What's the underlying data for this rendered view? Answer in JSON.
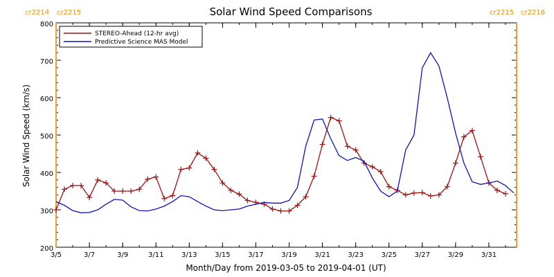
{
  "chart_data": {
    "type": "line",
    "title": "Solar Wind Speed Comparisons",
    "xlabel": "Month/Day from 2019-03-05 to 2019-04-01 (UT)",
    "ylabel": "Solar Wind Speed (km/s)",
    "ylim": [
      200,
      800
    ],
    "xlim": [
      "2019-03-05",
      "2019-04-01 16:00"
    ],
    "yticks": [
      200,
      300,
      400,
      500,
      600,
      700,
      800
    ],
    "xticks": [
      {
        "date": "2019-03-05",
        "label": "3/5"
      },
      {
        "date": "2019-03-07",
        "label": "3/7"
      },
      {
        "date": "2019-03-09",
        "label": "3/9"
      },
      {
        "date": "2019-03-11",
        "label": "3/11"
      },
      {
        "date": "2019-03-13",
        "label": "3/13"
      },
      {
        "date": "2019-03-15",
        "label": "3/15"
      },
      {
        "date": "2019-03-17",
        "label": "3/17"
      },
      {
        "date": "2019-03-19",
        "label": "3/19"
      },
      {
        "date": "2019-03-21",
        "label": "3/21"
      },
      {
        "date": "2019-03-23",
        "label": "3/23"
      },
      {
        "date": "2019-03-25",
        "label": "3/25"
      },
      {
        "date": "2019-03-27",
        "label": "3/27"
      },
      {
        "date": "2019-03-29",
        "label": "3/29"
      },
      {
        "date": "2019-03-31",
        "label": "3/31"
      }
    ],
    "legend_position": "top-left",
    "rotation_markers": [
      {
        "date": "2019-03-05",
        "label_left": "cr2214",
        "label_right": "cr2215",
        "color": "#f0a030"
      },
      {
        "date": "2019-04-01 16:00",
        "label_left": "cr2215",
        "label_right": "cr2216",
        "color": "#f0a030"
      }
    ],
    "series": [
      {
        "name": "STEREO-Ahead (12-hr avg)",
        "color": "#a01010",
        "marker": "plus",
        "points": [
          [
            "2019-03-05 00:00",
            300
          ],
          [
            "2019-03-05 12:00",
            355
          ],
          [
            "2019-03-06 00:00",
            365
          ],
          [
            "2019-03-06 12:00",
            365
          ],
          [
            "2019-03-07 00:00",
            333
          ],
          [
            "2019-03-07 12:00",
            380
          ],
          [
            "2019-03-08 00:00",
            372
          ],
          [
            "2019-03-08 12:00",
            350
          ],
          [
            "2019-03-09 00:00",
            350
          ],
          [
            "2019-03-09 12:00",
            350
          ],
          [
            "2019-03-10 00:00",
            355
          ],
          [
            "2019-03-10 12:00",
            382
          ],
          [
            "2019-03-11 00:00",
            388
          ],
          [
            "2019-03-11 12:00",
            330
          ],
          [
            "2019-03-12 00:00",
            338
          ],
          [
            "2019-03-12 12:00",
            408
          ],
          [
            "2019-03-13 00:00",
            412
          ],
          [
            "2019-03-13 12:00",
            452
          ],
          [
            "2019-03-14 00:00",
            438
          ],
          [
            "2019-03-14 12:00",
            408
          ],
          [
            "2019-03-15 00:00",
            372
          ],
          [
            "2019-03-15 12:00",
            352
          ],
          [
            "2019-03-16 00:00",
            342
          ],
          [
            "2019-03-16 12:00",
            325
          ],
          [
            "2019-03-17 00:00",
            320
          ],
          [
            "2019-03-17 12:00",
            315
          ],
          [
            "2019-03-18 00:00",
            302
          ],
          [
            "2019-03-18 12:00",
            297
          ],
          [
            "2019-03-19 00:00",
            297
          ],
          [
            "2019-03-19 12:00",
            312
          ],
          [
            "2019-03-20 00:00",
            335
          ],
          [
            "2019-03-20 12:00",
            390
          ],
          [
            "2019-03-21 00:00",
            475
          ],
          [
            "2019-03-21 12:00",
            547
          ],
          [
            "2019-03-22 00:00",
            538
          ],
          [
            "2019-03-22 12:00",
            470
          ],
          [
            "2019-03-23 00:00",
            460
          ],
          [
            "2019-03-23 12:00",
            425
          ],
          [
            "2019-03-24 00:00",
            415
          ],
          [
            "2019-03-24 12:00",
            402
          ],
          [
            "2019-03-25 00:00",
            362
          ],
          [
            "2019-03-25 12:00",
            352
          ],
          [
            "2019-03-26 00:00",
            340
          ],
          [
            "2019-03-26 12:00",
            345
          ],
          [
            "2019-03-27 00:00",
            346
          ],
          [
            "2019-03-27 12:00",
            337
          ],
          [
            "2019-03-28 00:00",
            340
          ],
          [
            "2019-03-28 12:00",
            362
          ],
          [
            "2019-03-29 00:00",
            425
          ],
          [
            "2019-03-29 12:00",
            495
          ],
          [
            "2019-03-30 00:00",
            512
          ],
          [
            "2019-03-30 12:00",
            442
          ],
          [
            "2019-03-31 00:00",
            372
          ],
          [
            "2019-03-31 12:00",
            352
          ],
          [
            "2019-04-01 00:00",
            343
          ]
        ]
      },
      {
        "name": "Predictive Science MAS Model",
        "color": "#1010c0",
        "marker": "none",
        "points": [
          [
            "2019-03-05 00:00",
            322
          ],
          [
            "2019-03-05 12:00",
            312
          ],
          [
            "2019-03-06 00:00",
            298
          ],
          [
            "2019-03-06 12:00",
            292
          ],
          [
            "2019-03-07 00:00",
            293
          ],
          [
            "2019-03-07 12:00",
            300
          ],
          [
            "2019-03-08 00:00",
            315
          ],
          [
            "2019-03-08 12:00",
            328
          ],
          [
            "2019-03-09 00:00",
            326
          ],
          [
            "2019-03-09 12:00",
            308
          ],
          [
            "2019-03-10 00:00",
            298
          ],
          [
            "2019-03-10 12:00",
            297
          ],
          [
            "2019-03-11 00:00",
            302
          ],
          [
            "2019-03-11 12:00",
            310
          ],
          [
            "2019-03-12 00:00",
            322
          ],
          [
            "2019-03-12 12:00",
            338
          ],
          [
            "2019-03-13 00:00",
            335
          ],
          [
            "2019-03-13 12:00",
            322
          ],
          [
            "2019-03-14 00:00",
            310
          ],
          [
            "2019-03-14 12:00",
            300
          ],
          [
            "2019-03-15 00:00",
            298
          ],
          [
            "2019-03-15 12:00",
            300
          ],
          [
            "2019-03-16 00:00",
            302
          ],
          [
            "2019-03-16 12:00",
            310
          ],
          [
            "2019-03-17 00:00",
            315
          ],
          [
            "2019-03-17 12:00",
            320
          ],
          [
            "2019-03-18 00:00",
            318
          ],
          [
            "2019-03-18 12:00",
            318
          ],
          [
            "2019-03-19 00:00",
            325
          ],
          [
            "2019-03-19 12:00",
            360
          ],
          [
            "2019-03-20 00:00",
            470
          ],
          [
            "2019-03-20 12:00",
            540
          ],
          [
            "2019-03-21 00:00",
            543
          ],
          [
            "2019-03-21 12:00",
            490
          ],
          [
            "2019-03-22 00:00",
            445
          ],
          [
            "2019-03-22 12:00",
            432
          ],
          [
            "2019-03-23 00:00",
            440
          ],
          [
            "2019-03-23 12:00",
            430
          ],
          [
            "2019-03-24 00:00",
            385
          ],
          [
            "2019-03-24 12:00",
            350
          ],
          [
            "2019-03-25 00:00",
            335
          ],
          [
            "2019-03-25 12:00",
            350
          ],
          [
            "2019-03-26 00:00",
            460
          ],
          [
            "2019-03-26 12:00",
            500
          ],
          [
            "2019-03-27 00:00",
            680
          ],
          [
            "2019-03-27 12:00",
            720
          ],
          [
            "2019-03-28 00:00",
            685
          ],
          [
            "2019-03-28 12:00",
            600
          ],
          [
            "2019-03-29 00:00",
            505
          ],
          [
            "2019-03-29 12:00",
            425
          ],
          [
            "2019-03-30 00:00",
            375
          ],
          [
            "2019-03-30 12:00",
            368
          ],
          [
            "2019-03-31 00:00",
            372
          ],
          [
            "2019-03-31 12:00",
            377
          ],
          [
            "2019-04-01 00:00",
            365
          ],
          [
            "2019-04-01 12:00",
            345
          ]
        ]
      }
    ]
  }
}
